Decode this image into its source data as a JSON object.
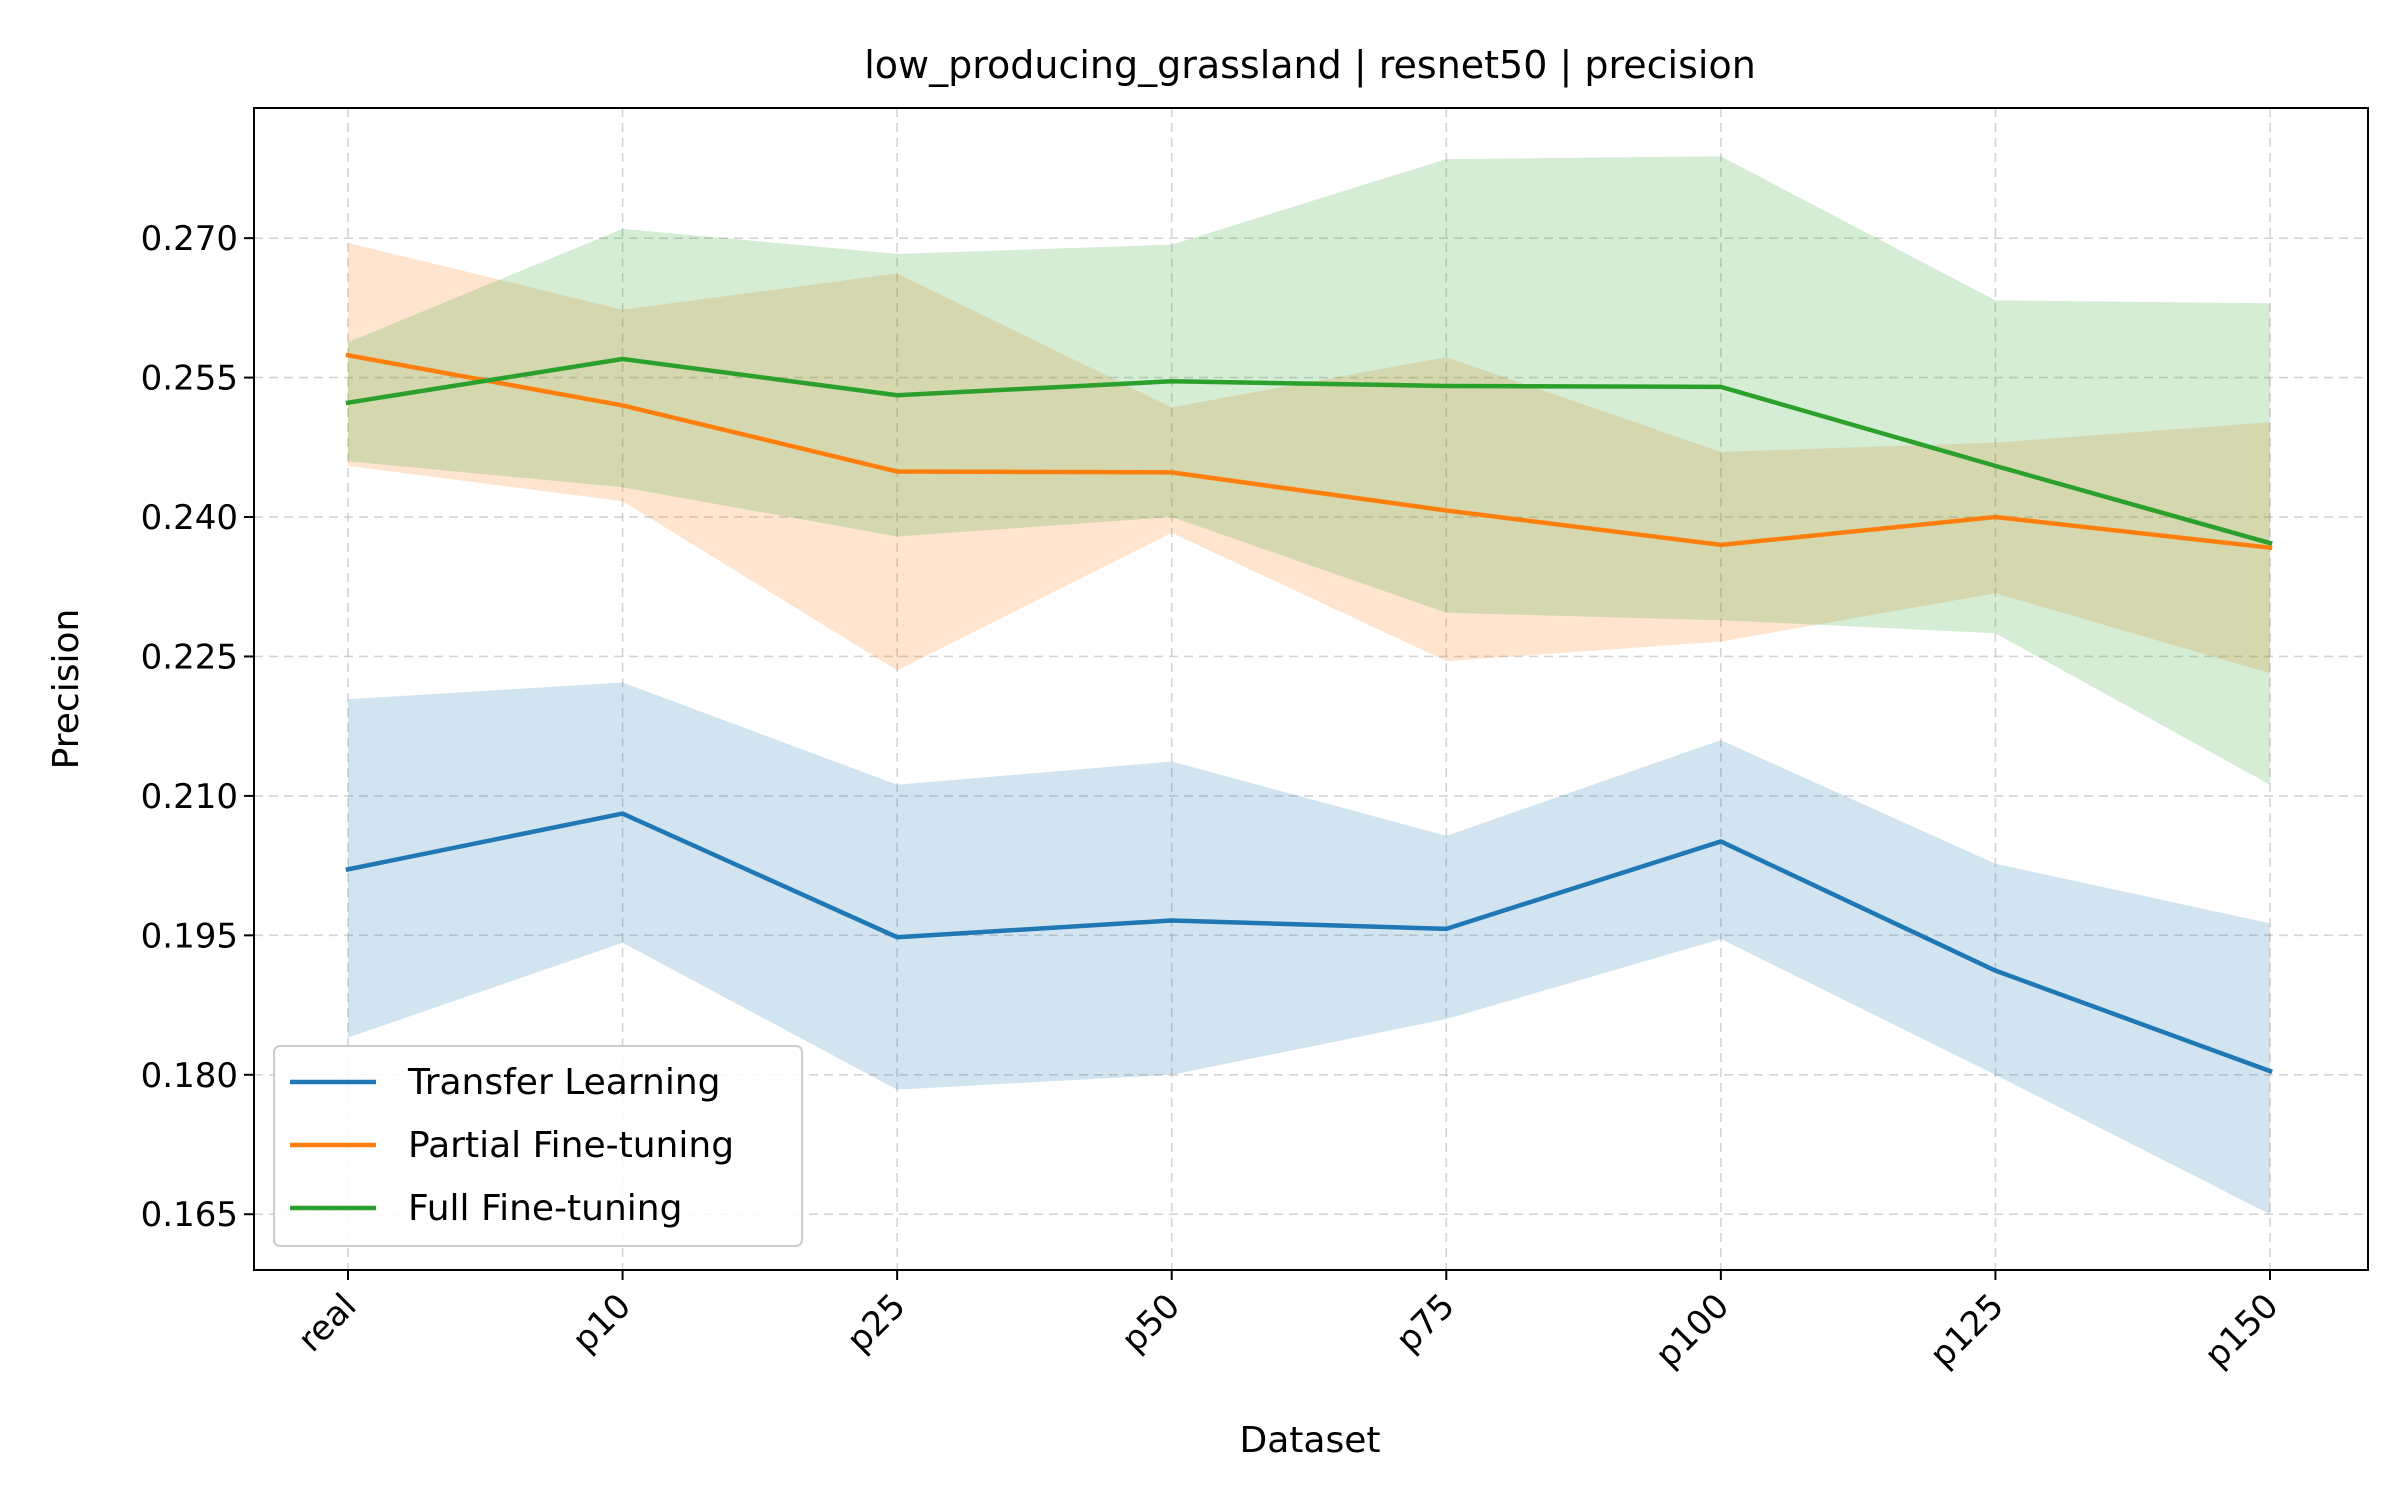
{
  "chart_data": {
    "type": "line",
    "title": "low_producing_grassland | resnet50 | precision",
    "xlabel": "Dataset",
    "ylabel": "Precision",
    "categories": [
      "real",
      "p10",
      "p25",
      "p50",
      "p75",
      "p100",
      "p125",
      "p150"
    ],
    "ylim": [
      0.159,
      0.284
    ],
    "yticks": [
      0.165,
      0.18,
      0.195,
      0.21,
      0.225,
      0.24,
      0.255,
      0.27
    ],
    "ytick_labels": [
      "0.165",
      "0.180",
      "0.195",
      "0.210",
      "0.225",
      "0.240",
      "0.255",
      "0.270"
    ],
    "grid": true,
    "legend_position": "lower-left",
    "series": [
      {
        "name": "Transfer Learning",
        "color": "#1f77b4",
        "values": [
          0.2021,
          0.2081,
          0.1948,
          0.1966,
          0.1957,
          0.2051,
          0.1912,
          0.1804
        ],
        "band_upper": [
          0.2204,
          0.2222,
          0.2112,
          0.2137,
          0.2057,
          0.216,
          0.2027,
          0.1963
        ],
        "band_lower": [
          0.184,
          0.1942,
          0.1784,
          0.18,
          0.186,
          0.1946,
          0.18,
          0.165
        ]
      },
      {
        "name": "Partial Fine-tuning",
        "color": "#ff7f0e",
        "values": [
          0.2574,
          0.252,
          0.2449,
          0.2448,
          0.2407,
          0.237,
          0.24,
          0.2367
        ],
        "band_upper": [
          0.2695,
          0.2623,
          0.2662,
          0.2518,
          0.2572,
          0.247,
          0.248,
          0.2502
        ],
        "band_lower": [
          0.2455,
          0.2417,
          0.2235,
          0.2383,
          0.2245,
          0.2266,
          0.2318,
          0.2232
        ]
      },
      {
        "name": "Full Fine-tuning",
        "color": "#2ca02c",
        "values": [
          0.2523,
          0.257,
          0.2531,
          0.2546,
          0.2541,
          0.254,
          0.2455,
          0.2372
        ],
        "band_upper": [
          0.2588,
          0.271,
          0.2683,
          0.2693,
          0.2785,
          0.2788,
          0.2633,
          0.263
        ],
        "band_lower": [
          0.246,
          0.2432,
          0.2379,
          0.24,
          0.2297,
          0.2289,
          0.2275,
          0.2112
        ]
      }
    ]
  }
}
